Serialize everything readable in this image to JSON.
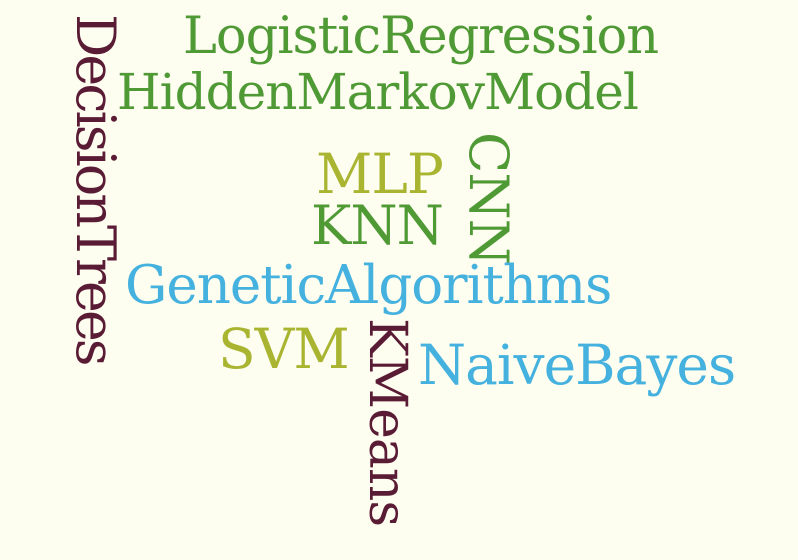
{
  "colors": {
    "background": "#fdfdf0",
    "green": "#4f9a35",
    "olive": "#a9b531",
    "blue": "#45b1de",
    "maroon": "#5a1b35"
  },
  "words": {
    "logistic_regression": "LogisticRegression",
    "hidden_markov_model": "HiddenMarkovModel",
    "decision_trees": "DecisionTrees",
    "mlp": "MLP",
    "cnn": "CNN",
    "knn": "KNN",
    "genetic_algorithms": "GeneticAlgorithms",
    "svm": "SVM",
    "kmeans": "KMeans",
    "naive_bayes": "NaiveBayes"
  }
}
